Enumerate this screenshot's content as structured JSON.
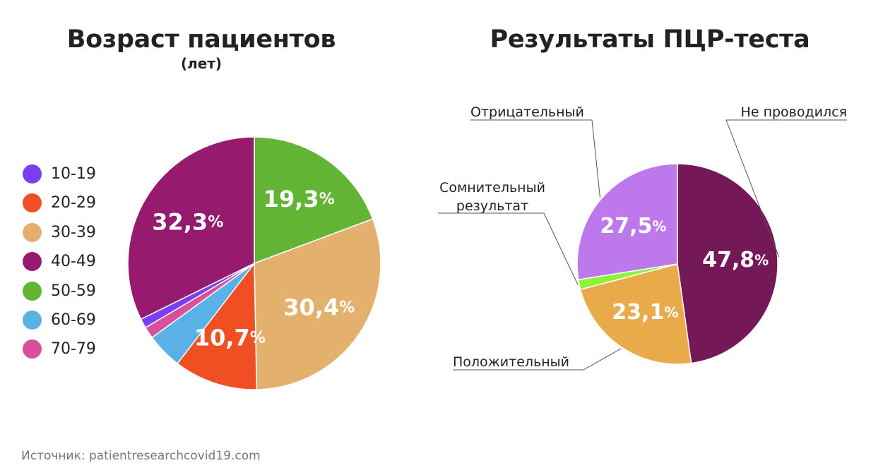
{
  "source_text": "Источник: patientresearchcovid19.com",
  "chart_data": [
    {
      "type": "pie",
      "title": "Возраст пациентов",
      "subtitle": "(лет)",
      "legend_position": "left",
      "slices": [
        {
          "label": "10-19",
          "value": 1.2,
          "color": "#7b3ff2",
          "display": ""
        },
        {
          "label": "20-29",
          "value": 10.7,
          "color": "#f04e23",
          "display": "10,7"
        },
        {
          "label": "30-39",
          "value": 30.4,
          "color": "#e3b06e",
          "display": "30,4"
        },
        {
          "label": "40-49",
          "value": 32.3,
          "color": "#961b6f",
          "display": "32,3"
        },
        {
          "label": "50-59",
          "value": 19.3,
          "color": "#62b435",
          "display": "19,3"
        },
        {
          "label": "60-69",
          "value": 4.6,
          "color": "#5ab1e6",
          "display": ""
        },
        {
          "label": "70-79",
          "value": 1.5,
          "color": "#d94f9a",
          "display": ""
        }
      ],
      "draw_order": [
        "50-59",
        "30-39",
        "20-29",
        "60-69",
        "70-79",
        "10-19",
        "40-49"
      ],
      "percent_sign": "%"
    },
    {
      "type": "pie",
      "title": "Результаты ПЦР-теста",
      "legend_position": "callouts",
      "slices": [
        {
          "label": "Не проводился",
          "value": 47.8,
          "color": "#751857",
          "display": "47,8"
        },
        {
          "label": "Положительный",
          "value": 23.1,
          "color": "#e9aa4a",
          "display": "23,1"
        },
        {
          "label": "Сомнительный результат",
          "label_lines": [
            "Сомнительный",
            "результат"
          ],
          "value": 1.6,
          "color": "#8ef23a",
          "display": ""
        },
        {
          "label": "Отрицательный",
          "value": 27.5,
          "color": "#bd78ec",
          "display": "27,5"
        }
      ],
      "percent_sign": "%"
    }
  ]
}
